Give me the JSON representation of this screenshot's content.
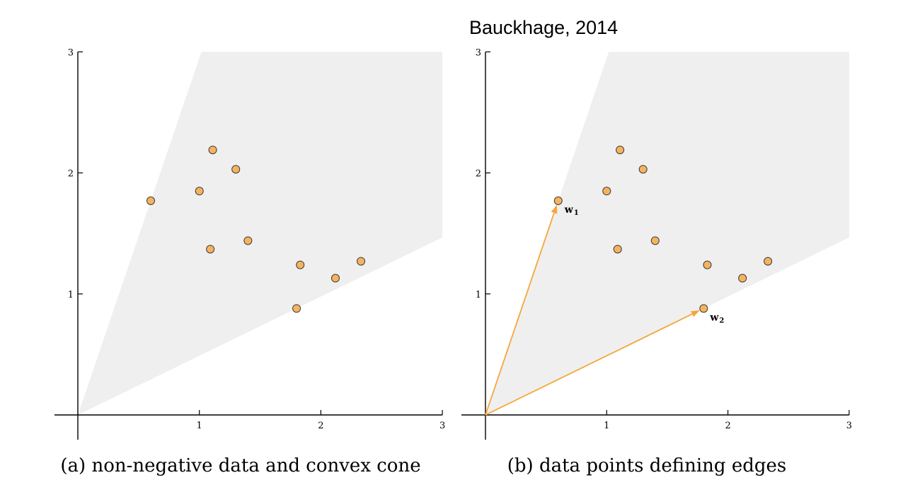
{
  "attribution": "Bauckhage, 2014",
  "chart_data": [
    {
      "type": "scatter",
      "caption": "(a) non-negative data and convex cone",
      "xlim": [
        0,
        3
      ],
      "ylim": [
        0,
        3
      ],
      "x_ticks": [
        1,
        2,
        3
      ],
      "y_ticks": [
        1,
        2,
        3
      ],
      "x_tick_labels": [
        "1",
        "2",
        "3"
      ],
      "y_tick_labels": [
        "1",
        "2",
        "3"
      ],
      "grid": false,
      "cone": {
        "fill_color": "#efefef",
        "edge_directions": [
          [
            0.6,
            1.77
          ],
          [
            1.8,
            0.88
          ]
        ]
      },
      "points": [
        {
          "x": 0.6,
          "y": 1.77
        },
        {
          "x": 1.0,
          "y": 1.85
        },
        {
          "x": 1.11,
          "y": 2.19
        },
        {
          "x": 1.3,
          "y": 2.03
        },
        {
          "x": 1.09,
          "y": 1.37
        },
        {
          "x": 1.4,
          "y": 1.44
        },
        {
          "x": 1.83,
          "y": 1.24
        },
        {
          "x": 1.8,
          "y": 0.88
        },
        {
          "x": 2.12,
          "y": 1.13
        },
        {
          "x": 2.33,
          "y": 1.27
        }
      ],
      "point_color": "#f5b35f"
    },
    {
      "type": "scatter",
      "caption": "(b) data points defining edges",
      "xlim": [
        0,
        3
      ],
      "ylim": [
        0,
        3
      ],
      "x_ticks": [
        1,
        2,
        3
      ],
      "y_ticks": [
        1,
        2,
        3
      ],
      "x_tick_labels": [
        "1",
        "2",
        "3"
      ],
      "y_tick_labels": [
        "1",
        "2",
        "3"
      ],
      "grid": false,
      "cone": {
        "fill_color": "#efefef",
        "edge_directions": [
          [
            0.6,
            1.77
          ],
          [
            1.8,
            0.88
          ]
        ]
      },
      "points": [
        {
          "x": 0.6,
          "y": 1.77
        },
        {
          "x": 1.0,
          "y": 1.85
        },
        {
          "x": 1.11,
          "y": 2.19
        },
        {
          "x": 1.3,
          "y": 2.03
        },
        {
          "x": 1.09,
          "y": 1.37
        },
        {
          "x": 1.4,
          "y": 1.44
        },
        {
          "x": 1.83,
          "y": 1.24
        },
        {
          "x": 1.8,
          "y": 0.88
        },
        {
          "x": 2.12,
          "y": 1.13
        },
        {
          "x": 2.33,
          "y": 1.27
        }
      ],
      "point_color": "#f5b35f",
      "vectors": [
        {
          "label": "w",
          "subscript": "1",
          "from": [
            0,
            0
          ],
          "to": [
            0.6,
            1.77
          ],
          "color": "#f5a73a"
        },
        {
          "label": "w",
          "subscript": "2",
          "from": [
            0,
            0
          ],
          "to": [
            1.8,
            0.88
          ],
          "color": "#f5a73a"
        }
      ]
    }
  ]
}
